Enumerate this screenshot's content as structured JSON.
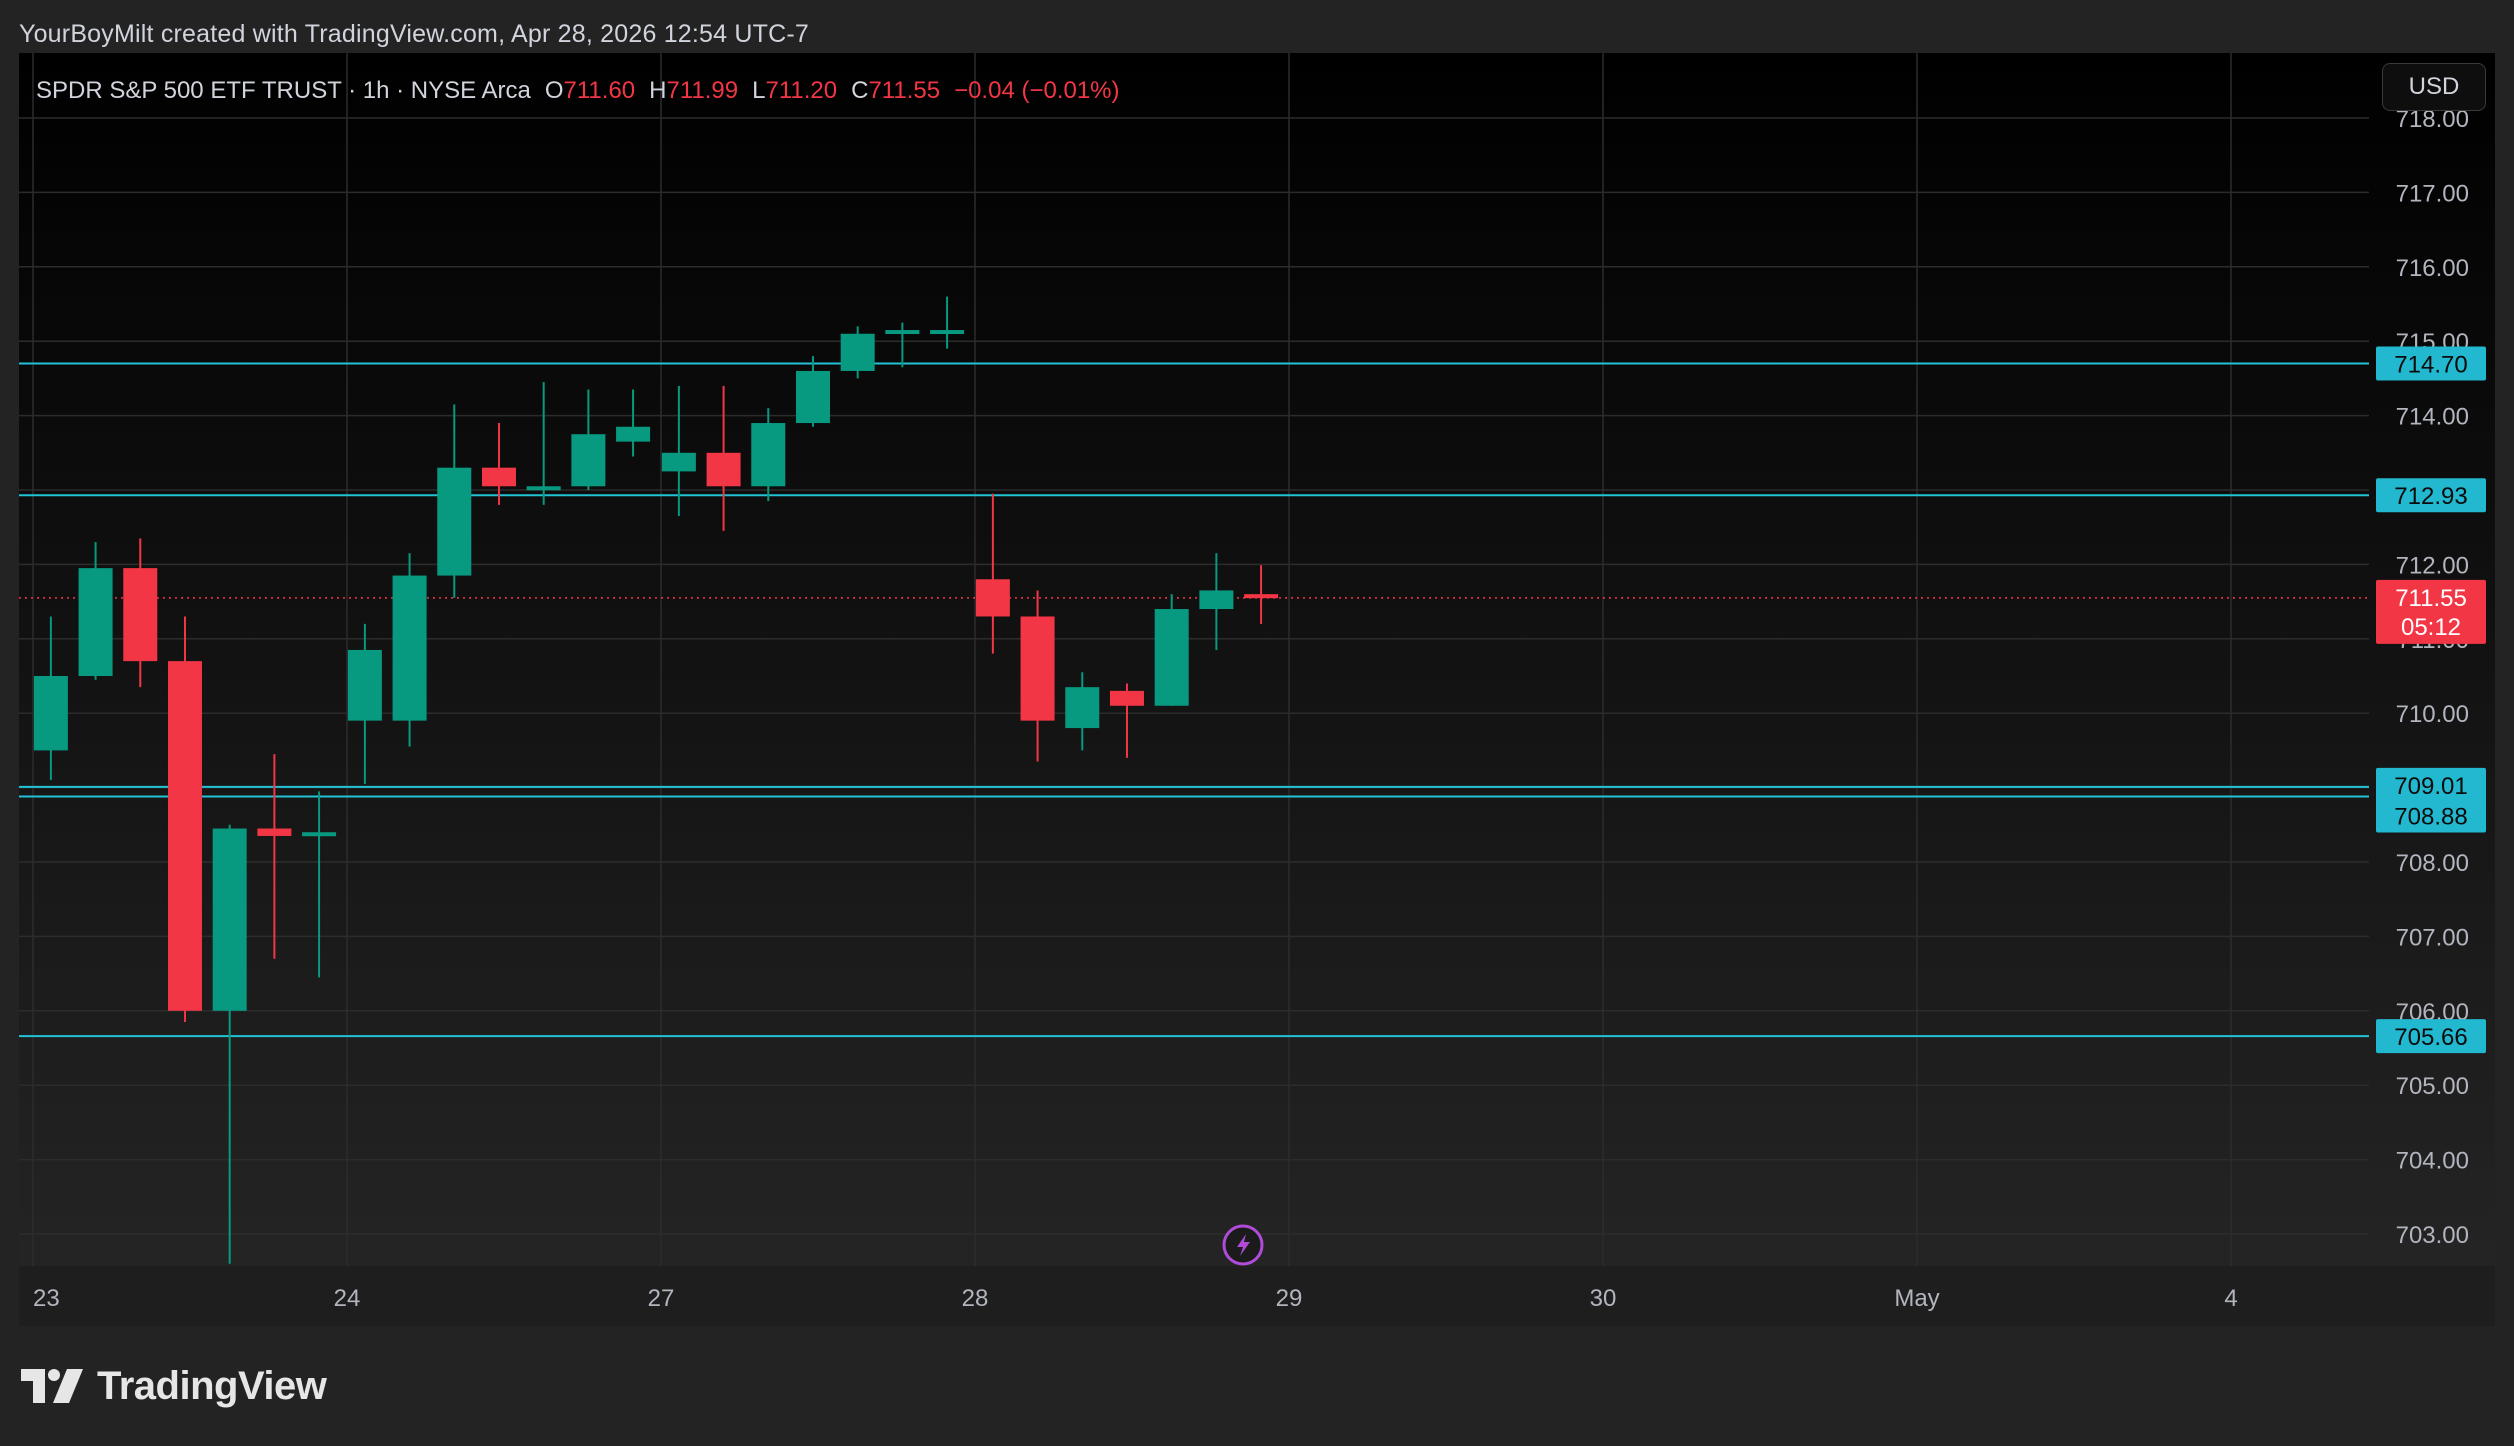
{
  "credit": "YourBoyMilt created with TradingView.com, Apr 28, 2026 12:54 UTC-7",
  "header": {
    "symbol": "SPDR S&P 500 ETF TRUST · 1h · NYSE Arca",
    "o_label": "O",
    "o_value": "711.60",
    "h_label": "H",
    "h_value": "711.99",
    "l_label": "L",
    "l_value": "711.20",
    "c_label": "C",
    "c_value": "711.55",
    "change": "−0.04 (−0.01%)"
  },
  "currency_button": "USD",
  "logo_text": "TradingView",
  "colors": {
    "up": "#089981",
    "down": "#f23645",
    "level_line": "#22c3d6",
    "level_label_bg": "#22b8cf",
    "last_price_bg": "#f23645",
    "event_icon": "#b04bd8"
  },
  "chart_data": {
    "type": "candlestick",
    "timeframe": "1h",
    "ylim": [
      702.5,
      718.5
    ],
    "y_ticks": [
      "703.00",
      "704.00",
      "705.00",
      "706.00",
      "707.00",
      "708.00",
      "709.00",
      "710.00",
      "711.00",
      "712.00",
      "713.00",
      "714.00",
      "715.00",
      "716.00",
      "717.00",
      "718.00"
    ],
    "x_ticks": [
      "23",
      "24",
      "27",
      "28",
      "29",
      "30",
      "May",
      "4"
    ],
    "grid": true,
    "candles": [
      {
        "day": "23",
        "hour": 1,
        "o": 709.5,
        "h": 711.3,
        "l": 709.1,
        "c": 710.5
      },
      {
        "day": "23",
        "hour": 2,
        "o": 710.5,
        "h": 712.3,
        "l": 710.45,
        "c": 711.95
      },
      {
        "day": "23",
        "hour": 3,
        "o": 711.95,
        "h": 712.35,
        "l": 710.35,
        "c": 710.7
      },
      {
        "day": "23",
        "hour": 4,
        "o": 710.7,
        "h": 711.3,
        "l": 705.85,
        "c": 706.0
      },
      {
        "day": "23",
        "hour": 5,
        "o": 706.0,
        "h": 708.5,
        "l": 702.6,
        "c": 708.45
      },
      {
        "day": "23",
        "hour": 6,
        "o": 708.45,
        "h": 709.45,
        "l": 706.7,
        "c": 708.35
      },
      {
        "day": "23",
        "hour": 7,
        "o": 708.35,
        "h": 708.95,
        "l": 706.45,
        "c": 708.4
      },
      {
        "day": "24",
        "hour": 1,
        "o": 709.9,
        "h": 711.2,
        "l": 709.05,
        "c": 710.85
      },
      {
        "day": "24",
        "hour": 2,
        "o": 709.9,
        "h": 712.15,
        "l": 709.55,
        "c": 711.85
      },
      {
        "day": "24",
        "hour": 3,
        "o": 711.85,
        "h": 714.15,
        "l": 711.55,
        "c": 713.3
      },
      {
        "day": "24",
        "hour": 4,
        "o": 713.3,
        "h": 713.9,
        "l": 712.8,
        "c": 713.05
      },
      {
        "day": "24",
        "hour": 5,
        "o": 713.0,
        "h": 714.45,
        "l": 712.8,
        "c": 713.05
      },
      {
        "day": "24",
        "hour": 6,
        "o": 713.05,
        "h": 714.35,
        "l": 713.0,
        "c": 713.75
      },
      {
        "day": "24",
        "hour": 7,
        "o": 713.65,
        "h": 714.35,
        "l": 713.45,
        "c": 713.85
      },
      {
        "day": "27",
        "hour": 1,
        "o": 713.25,
        "h": 714.4,
        "l": 712.65,
        "c": 713.5
      },
      {
        "day": "27",
        "hour": 2,
        "o": 713.5,
        "h": 714.4,
        "l": 712.45,
        "c": 713.05
      },
      {
        "day": "27",
        "hour": 3,
        "o": 713.05,
        "h": 714.1,
        "l": 712.85,
        "c": 713.9
      },
      {
        "day": "27",
        "hour": 4,
        "o": 713.9,
        "h": 714.8,
        "l": 713.85,
        "c": 714.6
      },
      {
        "day": "27",
        "hour": 5,
        "o": 714.6,
        "h": 715.2,
        "l": 714.5,
        "c": 715.1
      },
      {
        "day": "27",
        "hour": 6,
        "o": 715.1,
        "h": 715.25,
        "l": 714.65,
        "c": 715.15
      },
      {
        "day": "27",
        "hour": 7,
        "o": 715.1,
        "h": 715.6,
        "l": 714.9,
        "c": 715.15
      },
      {
        "day": "28",
        "hour": 1,
        "o": 711.8,
        "h": 712.95,
        "l": 710.8,
        "c": 711.3
      },
      {
        "day": "28",
        "hour": 2,
        "o": 711.3,
        "h": 711.65,
        "l": 709.35,
        "c": 709.9
      },
      {
        "day": "28",
        "hour": 3,
        "o": 709.8,
        "h": 710.55,
        "l": 709.5,
        "c": 710.35
      },
      {
        "day": "28",
        "hour": 4,
        "o": 710.3,
        "h": 710.4,
        "l": 709.4,
        "c": 710.1
      },
      {
        "day": "28",
        "hour": 5,
        "o": 710.1,
        "h": 711.6,
        "l": 710.1,
        "c": 711.4
      },
      {
        "day": "28",
        "hour": 6,
        "o": 711.4,
        "h": 712.15,
        "l": 710.85,
        "c": 711.65
      },
      {
        "day": "28",
        "hour": 7,
        "o": 711.6,
        "h": 711.99,
        "l": 711.2,
        "c": 711.55
      }
    ],
    "horizontal_levels": [
      "714.70",
      "712.93",
      "709.01",
      "708.88",
      "705.66"
    ],
    "last_price": "711.55",
    "countdown": "05:12"
  }
}
